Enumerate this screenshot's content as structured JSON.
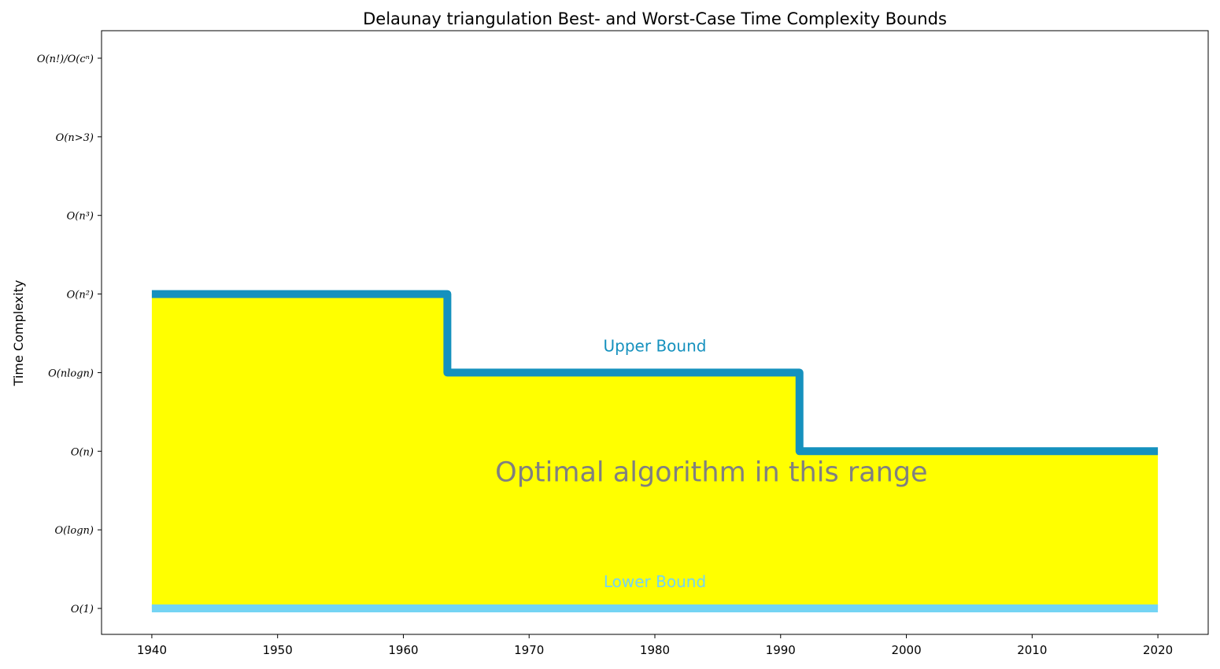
{
  "chart_data": {
    "type": "line",
    "title": "Delaunay triangulation Best- and Worst-Case Time Complexity Bounds",
    "xlabel": "",
    "ylabel": "Time Complexity",
    "xlim": [
      1936,
      2024
    ],
    "ylim": [
      -0.33,
      7.35
    ],
    "x_ticks": [
      1940,
      1950,
      1960,
      1970,
      1980,
      1990,
      2000,
      2010,
      2020
    ],
    "y_ticks": [
      {
        "value": 0,
        "label": "O(1)"
      },
      {
        "value": 1,
        "label": "O(logn)"
      },
      {
        "value": 2,
        "label": "O(n)"
      },
      {
        "value": 3,
        "label": "O(nlogn)"
      },
      {
        "value": 4,
        "label": "O(n²)"
      },
      {
        "value": 5,
        "label": "O(n³)"
      },
      {
        "value": 6,
        "label": "O(n>3)"
      },
      {
        "value": 7,
        "label": "O(n!)/O(cⁿ)"
      }
    ],
    "grid": false,
    "series": [
      {
        "name": "Upper Bound",
        "style": "step",
        "color": "#1591be",
        "points": [
          [
            1940,
            4
          ],
          [
            1963.5,
            4
          ],
          [
            1963.5,
            3
          ],
          [
            1991.5,
            3
          ],
          [
            1991.5,
            2
          ],
          [
            2020,
            2
          ]
        ]
      },
      {
        "name": "Lower Bound",
        "style": "step",
        "color": "#74d4f4",
        "points": [
          [
            1940,
            0
          ],
          [
            2020,
            0
          ]
        ]
      }
    ],
    "fill": {
      "color": "#ffff00",
      "between": [
        "Upper Bound",
        "Lower Bound"
      ]
    },
    "annotations": [
      {
        "text": "Upper Bound",
        "x": 1980,
        "y": 3.27,
        "color": "#1591be",
        "size": "medium"
      },
      {
        "text": "Lower Bound",
        "x": 1980,
        "y": 0.27,
        "color": "#74d4f4",
        "size": "medium"
      },
      {
        "text": "Optimal algorithm in this range",
        "x": 1984.5,
        "y": 1.62,
        "color": "#808080",
        "size": "large"
      }
    ]
  }
}
